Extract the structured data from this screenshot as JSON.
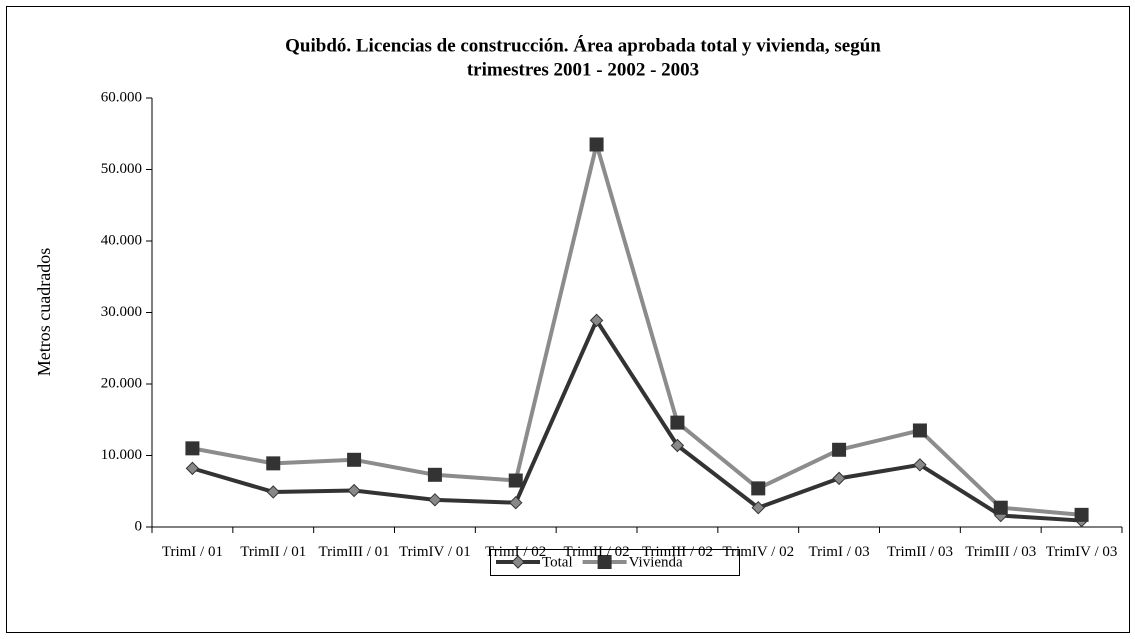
{
  "chart_data": {
    "type": "line",
    "title": [
      "Quibdó. Licencias de construcción. Área aprobada total y vivienda, según",
      "trimestres 2001 - 2002 - 2003"
    ],
    "y_label": "Metros cuadrados",
    "categories": [
      "TrimI / 01",
      "TrimII / 01",
      "TrimIII / 01",
      "TrimIV / 01",
      "TrimI / 02",
      "TrimII / 02",
      "TrimIII / 02",
      "TrimIV / 02",
      "TrimI / 03",
      "TrimII / 03",
      "TrimIII / 03",
      "TrimIV / 03"
    ],
    "series": [
      {
        "name": "Total",
        "color": "#333333",
        "marker": "diamond",
        "marker_color": "#888888",
        "values": [
          8200,
          4900,
          5100,
          3800,
          3400,
          28900,
          11400,
          2700,
          6800,
          8700,
          1600,
          900
        ]
      },
      {
        "name": "Vivienda",
        "color": "#8c8c8c",
        "marker": "square",
        "marker_color": "#333333",
        "values": [
          11000,
          8900,
          9400,
          7300,
          6500,
          53500,
          14600,
          5400,
          10800,
          13500,
          2700,
          1700
        ]
      }
    ],
    "ylim": [
      0,
      60000
    ],
    "yticks": [
      0,
      {
        "value": 10000,
        "label": "10.000"
      },
      {
        "value": 20000,
        "label": "20.000"
      },
      {
        "value": 30000,
        "label": "30.000"
      },
      {
        "value": 40000,
        "label": "40.000"
      },
      {
        "value": 50000,
        "label": "50.000"
      },
      {
        "value": 60000,
        "label": "60.000"
      }
    ],
    "legend": "bottom"
  }
}
